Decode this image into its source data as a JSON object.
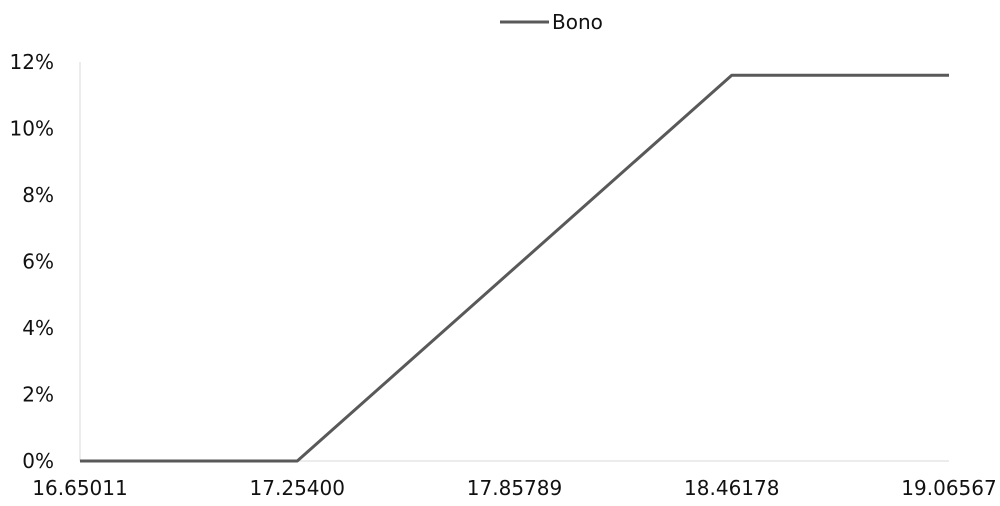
{
  "chart_data": {
    "type": "line",
    "title": "",
    "xlabel": "",
    "ylabel": "",
    "legend": {
      "position": "top-center",
      "entries": [
        "Bono"
      ]
    },
    "x_tick_labels": [
      "16.65011",
      "17.25400",
      "17.85789",
      "18.46178",
      "19.06567"
    ],
    "y_tick_labels": [
      "0%",
      "2%",
      "4%",
      "6%",
      "8%",
      "10%",
      "12%"
    ],
    "xlim": [
      16.65011,
      19.06567
    ],
    "ylim": [
      0,
      12
    ],
    "grid": false,
    "series": [
      {
        "name": "Bono",
        "color": "#595959",
        "x": [
          16.65011,
          17.254,
          18.46178,
          19.06567
        ],
        "y": [
          0,
          0,
          11.6,
          11.6
        ]
      }
    ]
  }
}
